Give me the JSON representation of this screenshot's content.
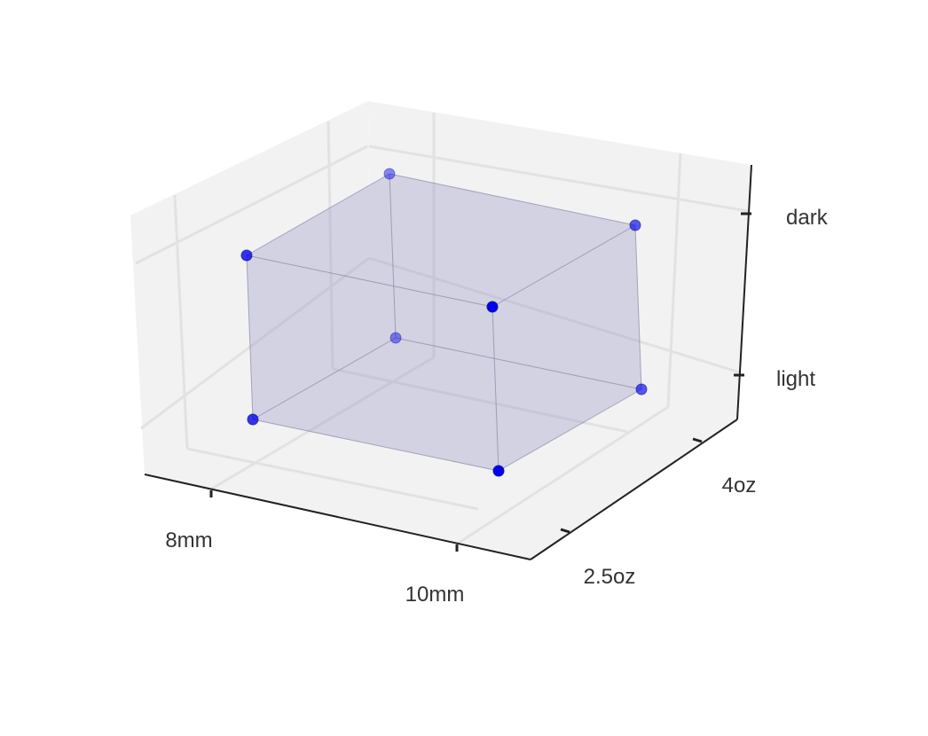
{
  "chart_data": {
    "type": "scatter",
    "projection": "3d",
    "title": "",
    "axes": {
      "x": {
        "label": "",
        "ticks": [
          "8mm",
          "10mm"
        ]
      },
      "y": {
        "label": "",
        "ticks": [
          "2.5oz",
          "4oz"
        ]
      },
      "z": {
        "label": "",
        "ticks": [
          "light",
          "dark"
        ]
      }
    },
    "points": [
      {
        "x": "8mm",
        "y": "2.5oz",
        "z": "light"
      },
      {
        "x": "10mm",
        "y": "2.5oz",
        "z": "light"
      },
      {
        "x": "8mm",
        "y": "4oz",
        "z": "light"
      },
      {
        "x": "10mm",
        "y": "4oz",
        "z": "light"
      },
      {
        "x": "8mm",
        "y": "2.5oz",
        "z": "dark"
      },
      {
        "x": "10mm",
        "y": "2.5oz",
        "z": "dark"
      },
      {
        "x": "8mm",
        "y": "4oz",
        "z": "dark"
      },
      {
        "x": "10mm",
        "y": "4oz",
        "z": "dark"
      }
    ],
    "cube_edges": true,
    "cube_fill": true,
    "grid": true,
    "legend": "none",
    "colors": {
      "point": "#0000ee",
      "cube_fill": "#9a9ac8",
      "cube_edge": "#7a7aa0",
      "pane": "#f2f2f2",
      "grid": "#e2e2e2",
      "axis": "#222222",
      "text": "#333333"
    }
  }
}
